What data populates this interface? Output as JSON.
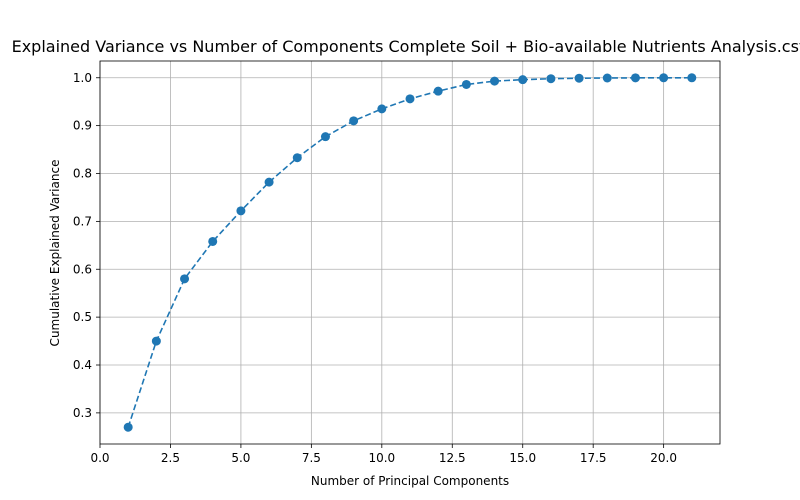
{
  "chart_data": {
    "type": "line",
    "title": "Explained Variance vs Number of Components Complete Soil + Bio-available Nutrients Analysis.csv",
    "xlabel": "Number of Principal Components",
    "ylabel": "Cumulative Explained Variance",
    "xlim": [
      0,
      22
    ],
    "ylim": [
      0.235,
      1.035
    ],
    "xticks": [
      0.0,
      2.5,
      5.0,
      7.5,
      10.0,
      12.5,
      15.0,
      17.5,
      20.0
    ],
    "xtick_labels": [
      "0.0",
      "2.5",
      "5.0",
      "7.5",
      "10.0",
      "12.5",
      "15.0",
      "17.5",
      "20.0"
    ],
    "yticks": [
      0.3,
      0.4,
      0.5,
      0.6,
      0.7,
      0.8,
      0.9,
      1.0
    ],
    "ytick_labels": [
      "0.3",
      "0.4",
      "0.5",
      "0.6",
      "0.7",
      "0.8",
      "0.9",
      "1.0"
    ],
    "grid": true,
    "line_style": "dashed",
    "marker": "circle",
    "color": "#1f77b4",
    "x": [
      1,
      2,
      3,
      4,
      5,
      6,
      7,
      8,
      9,
      10,
      11,
      12,
      13,
      14,
      15,
      16,
      17,
      18,
      19,
      20,
      21
    ],
    "y": [
      0.27,
      0.45,
      0.58,
      0.658,
      0.722,
      0.782,
      0.833,
      0.877,
      0.91,
      0.935,
      0.956,
      0.972,
      0.986,
      0.993,
      0.996,
      0.998,
      0.999,
      0.9995,
      0.9998,
      0.9999,
      1.0
    ]
  }
}
